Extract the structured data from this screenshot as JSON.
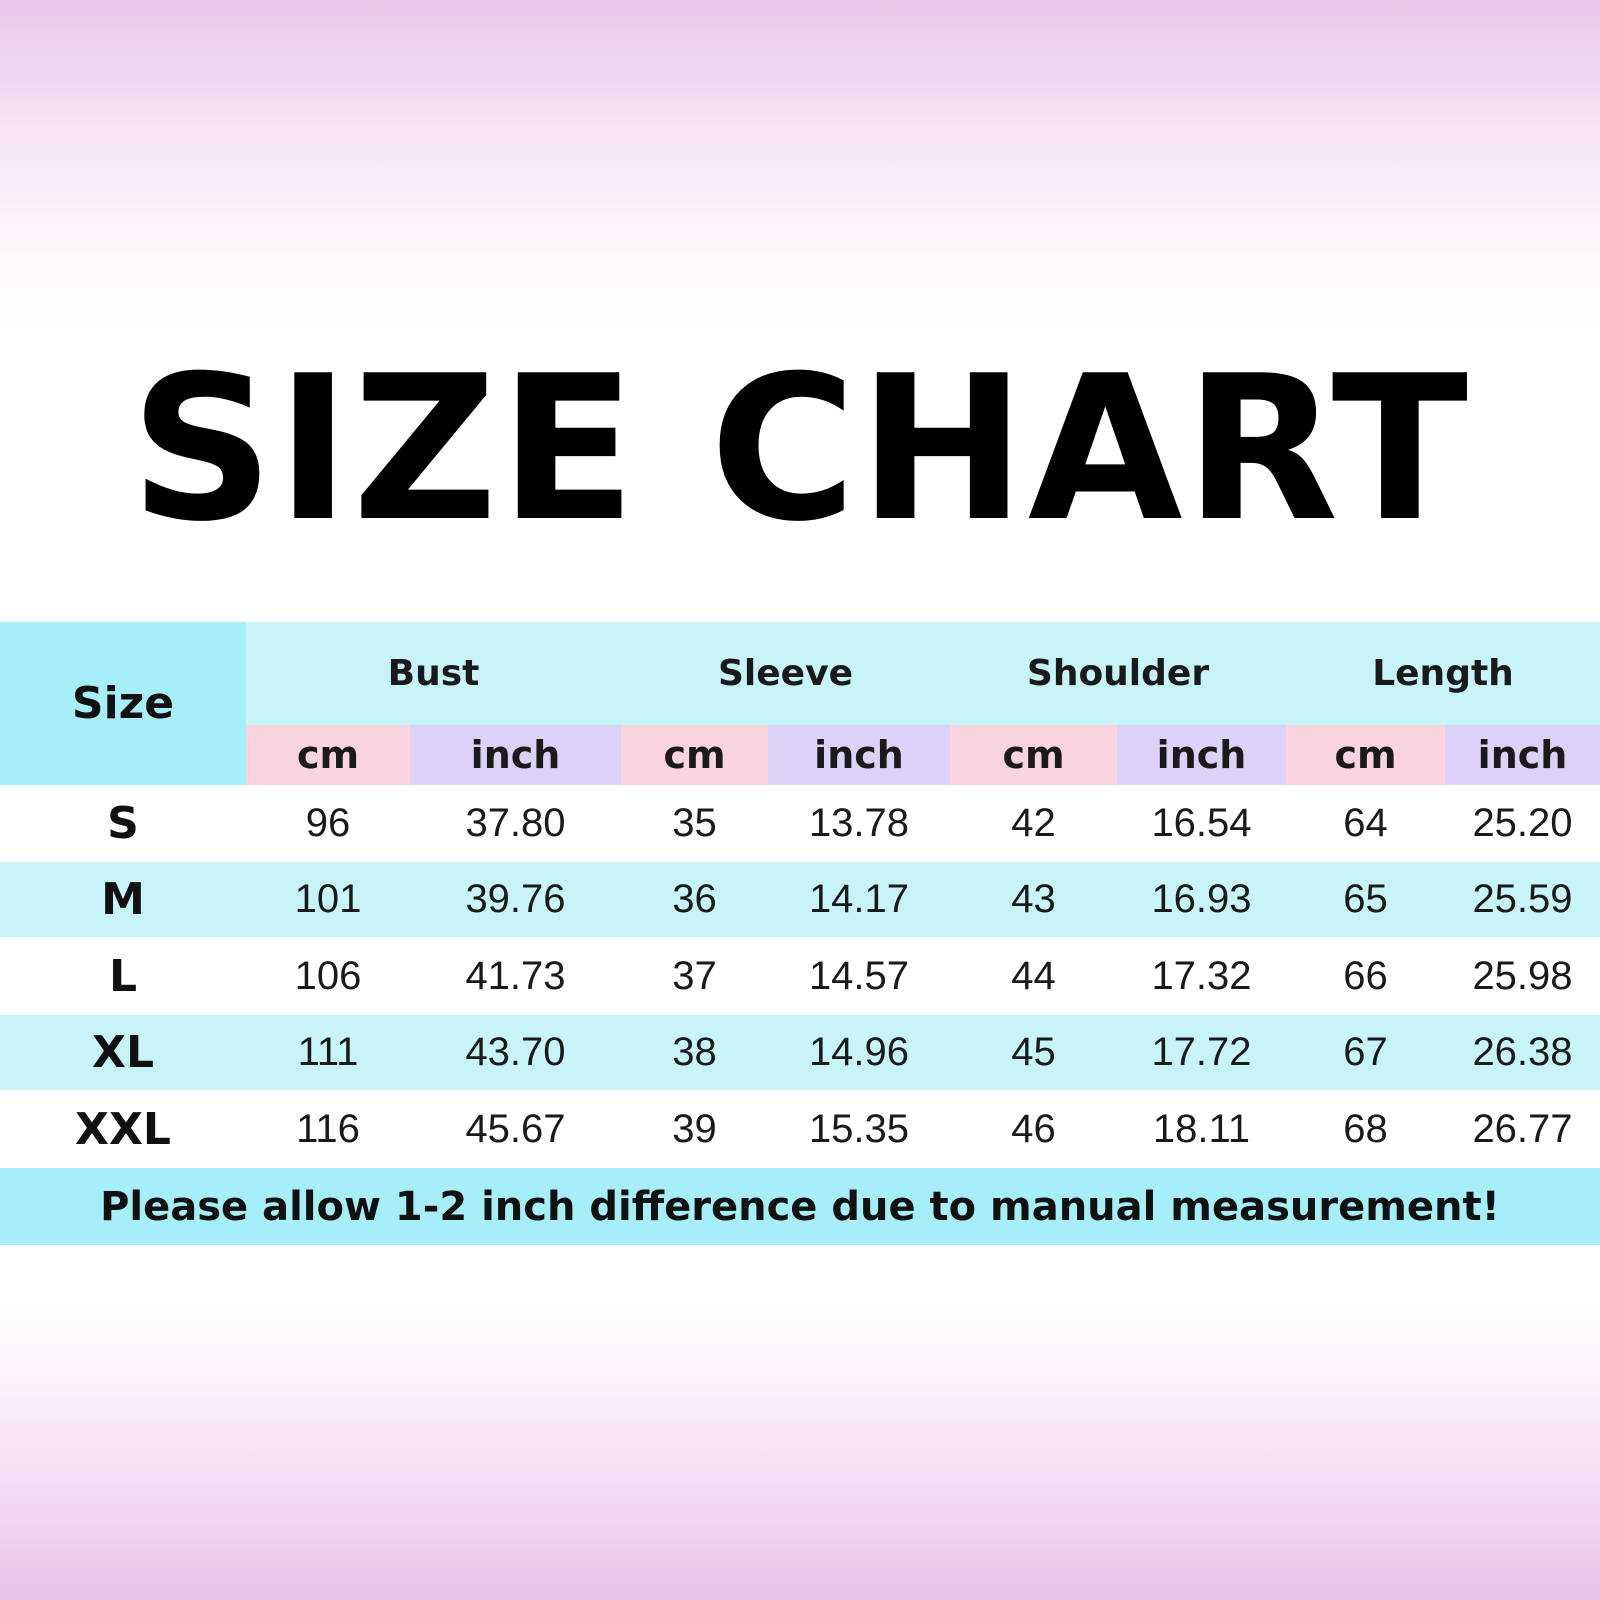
{
  "title": "SIZE CHART",
  "colors": {
    "size_header_bg": "#a6eef8",
    "group_header_bg": "#c6f4f8",
    "cm_bg": "#fad3e0",
    "inch_bg": "#dcd2f8",
    "row_alt_bg": "#c6f4f8",
    "row_bg": "#ffffff",
    "footer_bg": "#a6eef8"
  },
  "table": {
    "size_label": "Size",
    "groups": [
      "Bust",
      "Sleeve",
      "Shoulder",
      "Length"
    ],
    "units": [
      "cm",
      "inch",
      "cm",
      "inch",
      "cm",
      "inch",
      "cm",
      "inch"
    ],
    "rows": [
      {
        "size": "S",
        "values": [
          "96",
          "37.80",
          "35",
          "13.78",
          "42",
          "16.54",
          "64",
          "25.20"
        ]
      },
      {
        "size": "M",
        "values": [
          "101",
          "39.76",
          "36",
          "14.17",
          "43",
          "16.93",
          "65",
          "25.59"
        ]
      },
      {
        "size": "L",
        "values": [
          "106",
          "41.73",
          "37",
          "14.57",
          "44",
          "17.32",
          "66",
          "25.98"
        ]
      },
      {
        "size": "XL",
        "values": [
          "111",
          "43.70",
          "38",
          "14.96",
          "45",
          "17.72",
          "67",
          "26.38"
        ]
      },
      {
        "size": "XXL",
        "values": [
          "116",
          "45.67",
          "39",
          "15.35",
          "46",
          "18.11",
          "68",
          "26.77"
        ]
      }
    ],
    "footer": "Please allow 1-2 inch difference due to manual measurement!"
  }
}
